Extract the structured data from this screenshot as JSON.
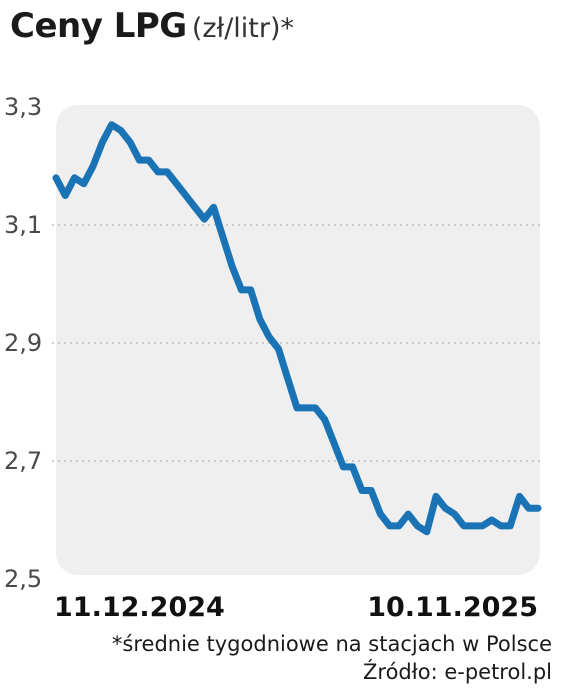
{
  "header": {
    "title": "Ceny LPG",
    "unit": "(zł/litr)*"
  },
  "footer": {
    "note": "*średnie tygodniowe na stacjach w Polsce",
    "source": "Źródło: e-petrol.pl"
  },
  "colors": {
    "line": "#1a73b5",
    "plot_background": "#efefef",
    "grid": "#bdbdbd"
  },
  "chart_data": {
    "type": "line",
    "title": "Ceny LPG",
    "ylabel": "(zł/litr)*",
    "ylim": [
      2.5,
      3.3
    ],
    "yticks": [
      2.5,
      2.7,
      2.9,
      3.1,
      3.3
    ],
    "ytick_labels": [
      "2,5",
      "2,7",
      "2,9",
      "3,1",
      "3,3"
    ],
    "xtick_labels": [
      "11.12.2024",
      "10.11.2025"
    ],
    "grid": "horizontal dotted",
    "series": [
      {
        "values": [
          3.18,
          3.15,
          3.18,
          3.17,
          3.2,
          3.24,
          3.27,
          3.26,
          3.24,
          3.21,
          3.21,
          3.19,
          3.19,
          3.17,
          3.15,
          3.13,
          3.11,
          3.13,
          3.08,
          3.03,
          2.99,
          2.99,
          2.94,
          2.91,
          2.89,
          2.84,
          2.79,
          2.79,
          2.79,
          2.77,
          2.73,
          2.69,
          2.69,
          2.65,
          2.65,
          2.61,
          2.59,
          2.59,
          2.61,
          2.59,
          2.58,
          2.64,
          2.62,
          2.61,
          2.59,
          2.59,
          2.59,
          2.6,
          2.59,
          2.59,
          2.64,
          2.62,
          2.62
        ]
      }
    ]
  }
}
